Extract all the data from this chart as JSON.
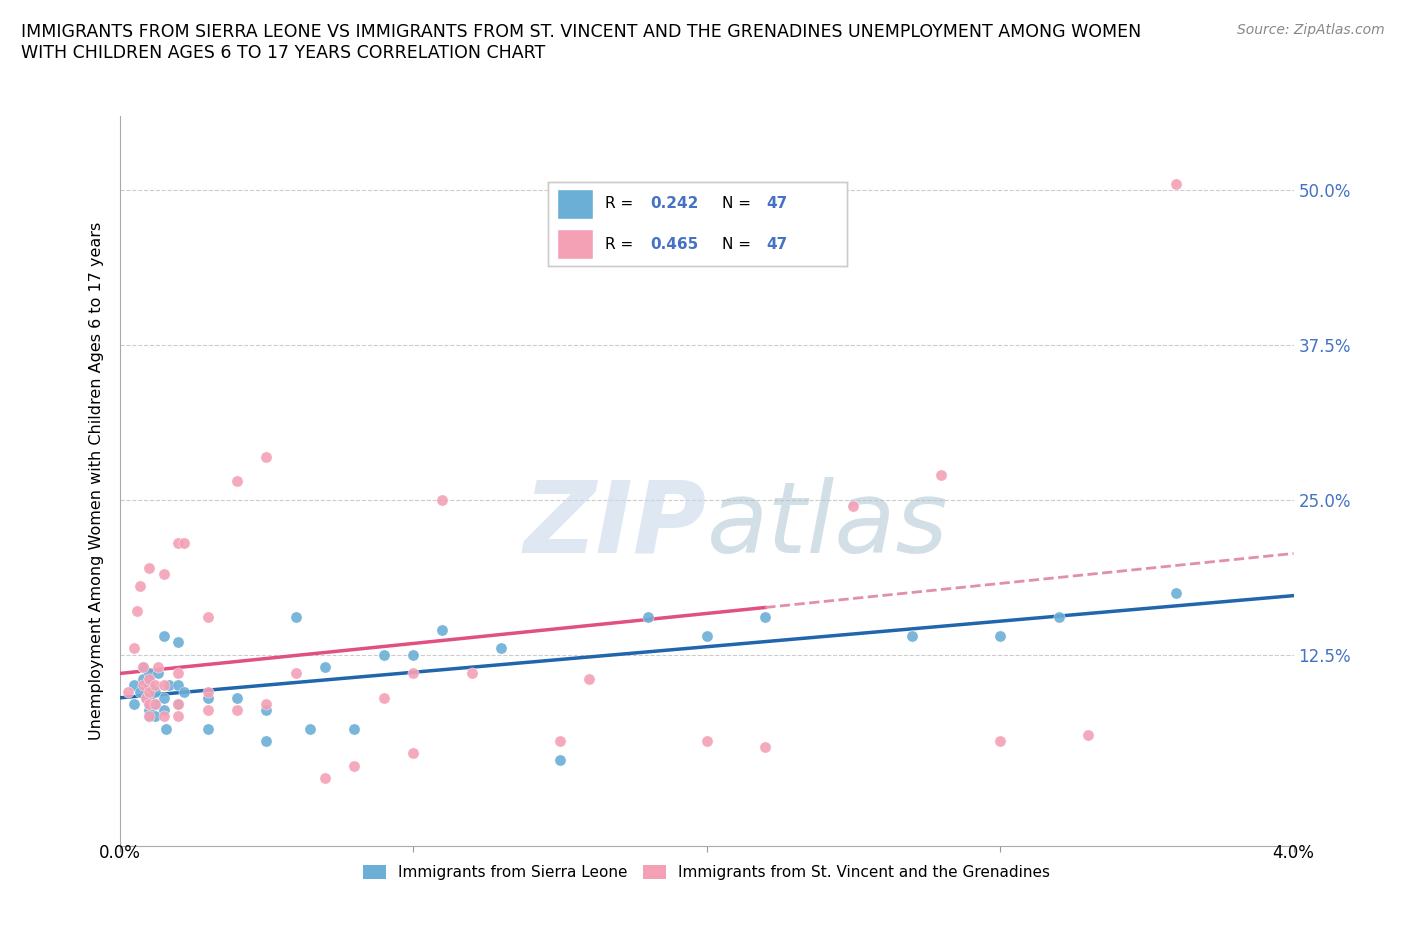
{
  "title": "IMMIGRANTS FROM SIERRA LEONE VS IMMIGRANTS FROM ST. VINCENT AND THE GRENADINES UNEMPLOYMENT AMONG WOMEN\nWITH CHILDREN AGES 6 TO 17 YEARS CORRELATION CHART",
  "source": "Source: ZipAtlas.com",
  "ylabel": "Unemployment Among Women with Children Ages 6 to 17 years",
  "xlim": [
    0.0,
    0.04
  ],
  "ylim": [
    -0.03,
    0.56
  ],
  "yticks": [
    0.0,
    0.125,
    0.25,
    0.375,
    0.5
  ],
  "ytick_labels": [
    "",
    "12.5%",
    "25.0%",
    "37.5%",
    "50.0%"
  ],
  "xticks": [
    0.0,
    0.01,
    0.02,
    0.03,
    0.04
  ],
  "sierra_leone_R": 0.242,
  "sierra_leone_N": 47,
  "stvincent_R": 0.465,
  "stvincent_N": 47,
  "sierra_leone_color": "#6baed6",
  "stvincent_color": "#f4a0b5",
  "sierra_leone_line_color": "#2166ac",
  "stvincent_line_color": "#e05080",
  "stvincent_dashed_color": "#e090a8",
  "watermark_color": "#c8d8ea",
  "sierra_leone_x": [
    0.0005,
    0.0005,
    0.0007,
    0.0008,
    0.0008,
    0.0009,
    0.001,
    0.001,
    0.001,
    0.001,
    0.001,
    0.001,
    0.001,
    0.0012,
    0.0012,
    0.0012,
    0.0013,
    0.0015,
    0.0015,
    0.0015,
    0.0016,
    0.0017,
    0.002,
    0.002,
    0.002,
    0.0022,
    0.003,
    0.003,
    0.004,
    0.005,
    0.005,
    0.006,
    0.0065,
    0.007,
    0.008,
    0.009,
    0.01,
    0.011,
    0.013,
    0.015,
    0.018,
    0.02,
    0.022,
    0.027,
    0.03,
    0.032,
    0.036
  ],
  "sierra_leone_y": [
    0.085,
    0.1,
    0.095,
    0.105,
    0.115,
    0.09,
    0.075,
    0.08,
    0.085,
    0.09,
    0.1,
    0.105,
    0.11,
    0.075,
    0.085,
    0.095,
    0.11,
    0.08,
    0.09,
    0.14,
    0.065,
    0.1,
    0.085,
    0.1,
    0.135,
    0.095,
    0.065,
    0.09,
    0.09,
    0.055,
    0.08,
    0.155,
    0.065,
    0.115,
    0.065,
    0.125,
    0.125,
    0.145,
    0.13,
    0.04,
    0.155,
    0.14,
    0.155,
    0.14,
    0.14,
    0.155,
    0.175
  ],
  "stvincent_x": [
    0.0003,
    0.0005,
    0.0006,
    0.0007,
    0.0008,
    0.0008,
    0.0009,
    0.001,
    0.001,
    0.001,
    0.001,
    0.001,
    0.0012,
    0.0012,
    0.0013,
    0.0015,
    0.0015,
    0.0015,
    0.002,
    0.002,
    0.002,
    0.002,
    0.0022,
    0.003,
    0.003,
    0.003,
    0.004,
    0.004,
    0.005,
    0.005,
    0.006,
    0.007,
    0.008,
    0.009,
    0.01,
    0.01,
    0.011,
    0.012,
    0.015,
    0.016,
    0.02,
    0.022,
    0.025,
    0.028,
    0.03,
    0.033,
    0.036
  ],
  "stvincent_y": [
    0.095,
    0.13,
    0.16,
    0.18,
    0.1,
    0.115,
    0.09,
    0.075,
    0.085,
    0.095,
    0.105,
    0.195,
    0.085,
    0.1,
    0.115,
    0.075,
    0.1,
    0.19,
    0.075,
    0.085,
    0.11,
    0.215,
    0.215,
    0.08,
    0.095,
    0.155,
    0.08,
    0.265,
    0.085,
    0.285,
    0.11,
    0.025,
    0.035,
    0.09,
    0.045,
    0.11,
    0.25,
    0.11,
    0.055,
    0.105,
    0.055,
    0.05,
    0.245,
    0.27,
    0.055,
    0.06,
    0.505
  ]
}
